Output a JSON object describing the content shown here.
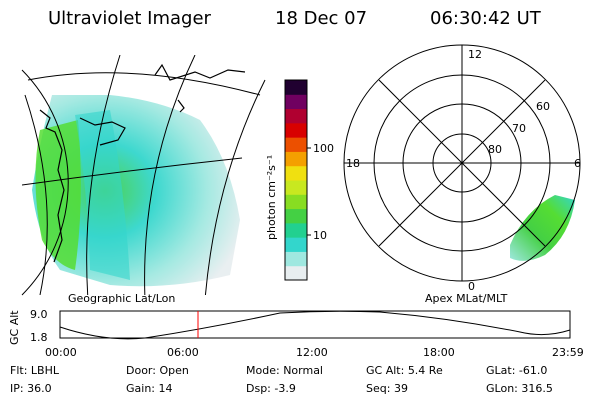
{
  "header": {
    "instrument": "Ultraviolet Imager",
    "date": "18 Dec 07",
    "time": "06:30:42 UT"
  },
  "left_panel": {
    "label": "Geographic Lat/Lon"
  },
  "right_panel": {
    "label": "Apex MLat/MLT",
    "mlt_labels": [
      "12",
      "18",
      "6",
      "0"
    ],
    "lat_labels": [
      "60",
      "70",
      "80"
    ]
  },
  "colorbar": {
    "label": "photon cm⁻²s⁻¹",
    "ticks": [
      "100",
      "10"
    ],
    "scale": "log",
    "colors": [
      "#e8eef0",
      "#9fe8e0",
      "#33d6cc",
      "#22d090",
      "#44d044",
      "#88dd22",
      "#c8e820",
      "#f0e010",
      "#f4a000",
      "#ec5000",
      "#d80000",
      "#b00030",
      "#700060",
      "#200030"
    ]
  },
  "timeline": {
    "axis_label": "GC Alt",
    "y_ticks": [
      "9.0",
      "1.8"
    ],
    "x_ticks": [
      "00:00",
      "06:00",
      "12:00",
      "18:00",
      "23:59"
    ],
    "marker_color": "#ff0000"
  },
  "status": [
    {
      "key": "Flt:",
      "value": "LBHL"
    },
    {
      "key": "Door:",
      "value": "Open"
    },
    {
      "key": "Mode:",
      "value": "Normal"
    },
    {
      "key": "GC Alt:",
      "value": "5.4 Re"
    },
    {
      "key": "GLat:",
      "value": "-61.0"
    },
    {
      "key": "IP:",
      "value": "36.0"
    },
    {
      "key": "Gain:",
      "value": "14"
    },
    {
      "key": "Dsp:",
      "value": "-3.9"
    },
    {
      "key": "Seq:",
      "value": "39"
    },
    {
      "key": "GLon:",
      "value": "316.5"
    }
  ]
}
